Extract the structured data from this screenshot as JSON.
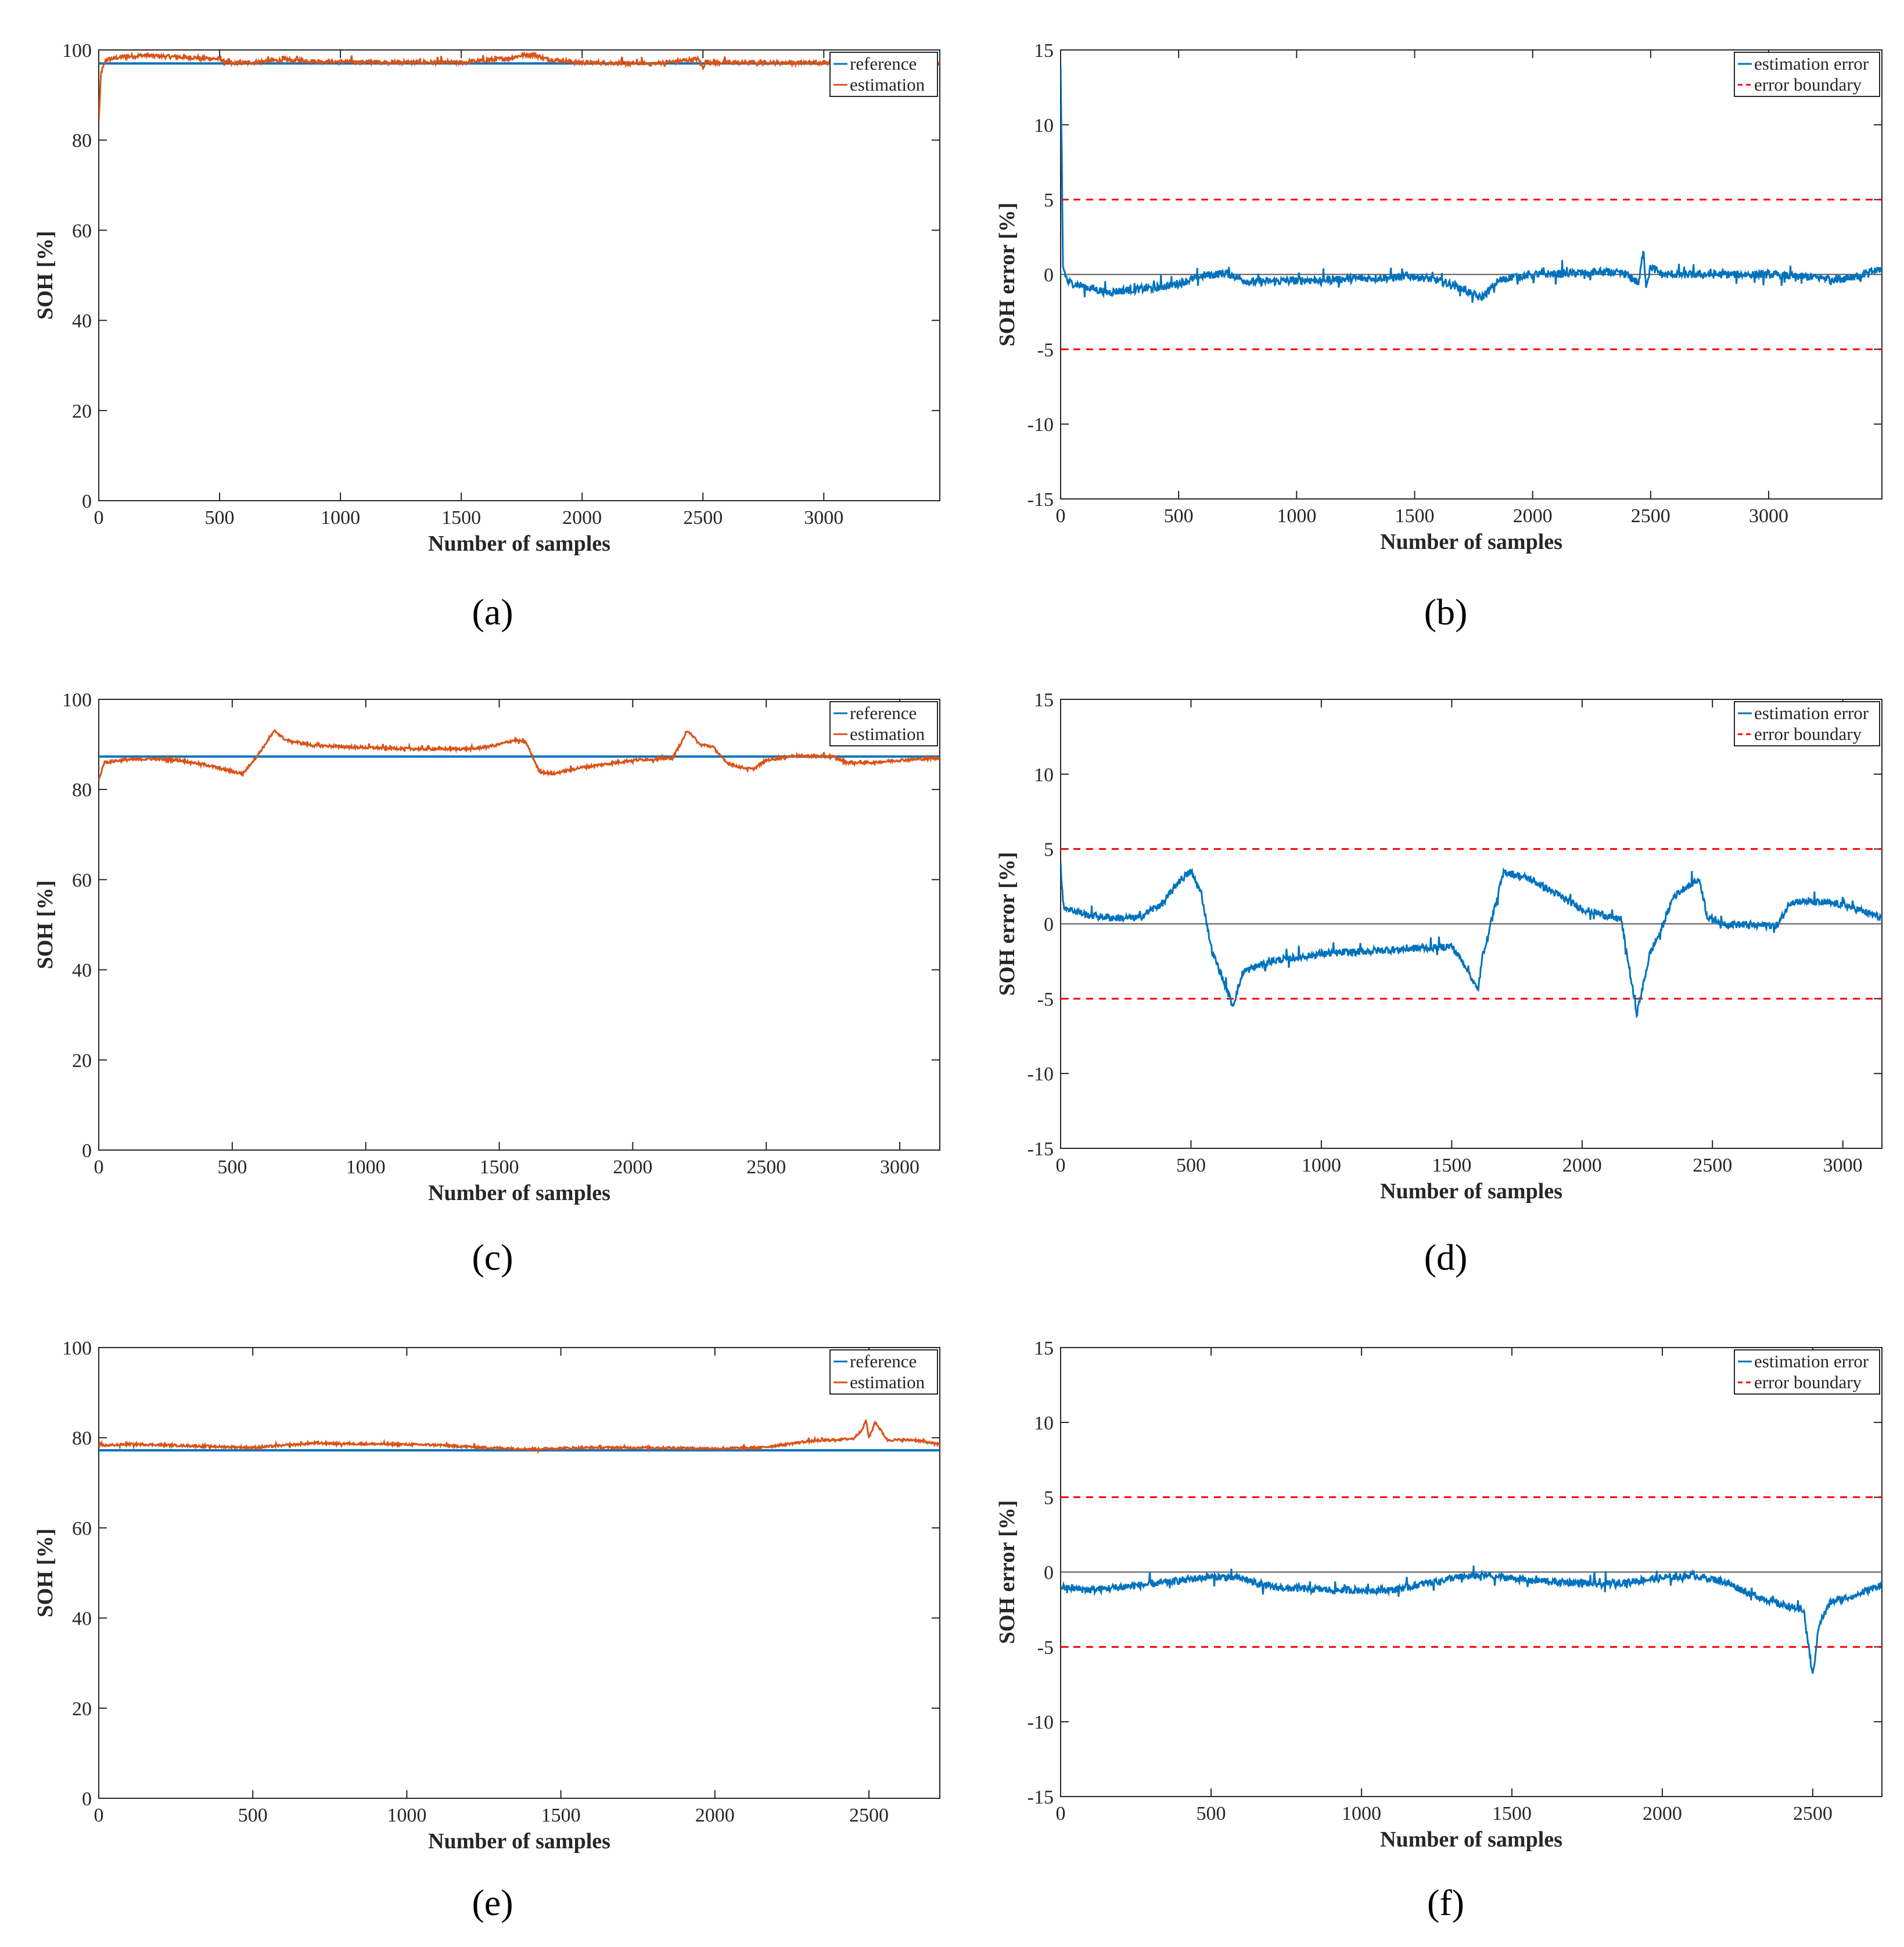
{
  "colors": {
    "reference": "#0072bd",
    "estimation": "#d95319",
    "error": "#0072bd",
    "boundary": "#ff0000",
    "zero_line": "#555555",
    "axes": "#262626"
  },
  "chart_data": [
    {
      "panel": "(a)",
      "type": "line",
      "xlabel": "Number of samples",
      "ylabel": "SOH [%]",
      "xlim": [
        0,
        3480
      ],
      "ylim": [
        0,
        100
      ],
      "xticks": [
        0,
        500,
        1000,
        1500,
        2000,
        2500,
        3000
      ],
      "yticks": [
        0,
        20,
        40,
        60,
        80,
        100
      ],
      "legend": [
        "reference",
        "estimation"
      ],
      "series": [
        {
          "name": "reference",
          "x": [
            0,
            3480
          ],
          "y": [
            97,
            97
          ]
        },
        {
          "name": "estimation",
          "noise": 0.9,
          "x": [
            0,
            10,
            30,
            100,
            200,
            300,
            400,
            500,
            550,
            650,
            700,
            800,
            900,
            1000,
            1200,
            1500,
            1700,
            1750,
            1800,
            1850,
            2000,
            2300,
            2450,
            2480,
            2500,
            2510,
            2550,
            3000,
            3200,
            3300,
            3480
          ],
          "y": [
            84,
            95,
            97.8,
            98.5,
            98.8,
            98.5,
            98.3,
            98,
            97,
            97.3,
            97.6,
            97.8,
            97.5,
            97.4,
            97.3,
            97.2,
            98.2,
            98.8,
            99,
            98,
            97.2,
            97,
            97.8,
            98,
            96,
            97.5,
            97.2,
            97.2,
            97.4,
            97.4,
            97
          ]
        }
      ]
    },
    {
      "panel": "(b)",
      "type": "line",
      "xlabel": "Number of samples",
      "ylabel": "SOH error [%]",
      "xlim": [
        0,
        3480
      ],
      "ylim": [
        -15,
        15
      ],
      "xticks": [
        0,
        500,
        1000,
        1500,
        2000,
        2500,
        3000
      ],
      "yticks": [
        -15,
        -10,
        -5,
        0,
        5,
        10,
        15
      ],
      "legend": [
        "estimation error",
        "error boundary"
      ],
      "boundary": [
        5,
        -5
      ],
      "series": [
        {
          "name": "estimation error",
          "noise": 0.55,
          "x": [
            0,
            5,
            10,
            30,
            100,
            200,
            300,
            400,
            500,
            600,
            650,
            700,
            800,
            1000,
            1200,
            1400,
            1500,
            1600,
            1700,
            1780,
            1800,
            1850,
            1900,
            2000,
            2200,
            2300,
            2400,
            2450,
            2470,
            2480,
            2500,
            2550,
            2600,
            3000,
            3200,
            3300,
            3400,
            3480
          ],
          "y": [
            13.3,
            8,
            0.5,
            -0.5,
            -0.8,
            -1.2,
            -1,
            -0.9,
            -0.6,
            -0.1,
            0,
            0.1,
            -0.5,
            -0.4,
            -0.3,
            -0.2,
            -0.1,
            -0.4,
            -0.9,
            -1.6,
            -1.3,
            -0.5,
            -0.2,
            0,
            0.1,
            0.2,
            0,
            -0.6,
            1.8,
            -0.8,
            0.5,
            0,
            0,
            0,
            -0.2,
            -0.3,
            0,
            0.4
          ]
        }
      ]
    },
    {
      "panel": "(c)",
      "type": "line",
      "xlabel": "Number of samples",
      "ylabel": "SOH [%]",
      "xlim": [
        0,
        3150
      ],
      "ylim": [
        0,
        100
      ],
      "xticks": [
        0,
        500,
        1000,
        1500,
        2000,
        2500,
        3000
      ],
      "yticks": [
        0,
        20,
        40,
        60,
        80,
        100
      ],
      "legend": [
        "reference",
        "estimation"
      ],
      "series": [
        {
          "name": "reference",
          "x": [
            0,
            3150
          ],
          "y": [
            87.3,
            87.3
          ]
        },
        {
          "name": "estimation",
          "noise": 0.6,
          "x": [
            0,
            20,
            100,
            200,
            300,
            400,
            500,
            540,
            600,
            640,
            660,
            700,
            800,
            1000,
            1200,
            1400,
            1500,
            1560,
            1600,
            1650,
            1700,
            1800,
            2000,
            2150,
            2200,
            2210,
            2250,
            2300,
            2350,
            2400,
            2450,
            2500,
            2600,
            2750,
            2800,
            2900,
            3000,
            3150
          ],
          "y": [
            82,
            86,
            86.6,
            86.8,
            86.5,
            85.5,
            84,
            83.5,
            88,
            91.5,
            93,
            91,
            89.8,
            89.3,
            89,
            89,
            90,
            91,
            90.5,
            84,
            83.5,
            84.8,
            86.5,
            87,
            92.5,
            93,
            90,
            89.5,
            86,
            85,
            84.5,
            86.5,
            87.5,
            87.3,
            86,
            86,
            86.5,
            87
          ]
        }
      ]
    },
    {
      "panel": "(d)",
      "type": "line",
      "xlabel": "Number of samples",
      "ylabel": "SOH error [%]",
      "xlim": [
        0,
        3150
      ],
      "ylim": [
        -15,
        15
      ],
      "xticks": [
        0,
        500,
        1000,
        1500,
        2000,
        2500,
        3000
      ],
      "yticks": [
        -15,
        -10,
        -5,
        0,
        5,
        10,
        15
      ],
      "legend": [
        "estimation error",
        "error boundary"
      ],
      "boundary": [
        5,
        -5
      ],
      "series": [
        {
          "name": "estimation error",
          "noise": 0.5,
          "x": [
            0,
            10,
            30,
            100,
            200,
            300,
            400,
            450,
            500,
            540,
            580,
            640,
            660,
            700,
            800,
            1000,
            1200,
            1400,
            1500,
            1560,
            1600,
            1620,
            1700,
            1800,
            2000,
            2150,
            2200,
            2210,
            2260,
            2300,
            2350,
            2400,
            2450,
            2480,
            2550,
            2650,
            2750,
            2800,
            2850,
            3000,
            3150
          ],
          "y": [
            4,
            1.2,
            1,
            0.6,
            0.4,
            0.4,
            1.5,
            2.8,
            3.5,
            2,
            -1.8,
            -4.5,
            -5.5,
            -3.2,
            -2.5,
            -2,
            -1.8,
            -1.6,
            -1.5,
            -3,
            -4.5,
            -2,
            3.5,
            3,
            1,
            0.3,
            -5,
            -6,
            -2,
            -0.5,
            1.8,
            2.5,
            3,
            0.5,
            0,
            -0.1,
            -0.1,
            1.5,
            1.5,
            1.3,
            0.4
          ]
        }
      ]
    },
    {
      "panel": "(e)",
      "type": "line",
      "xlabel": "Number of samples",
      "ylabel": "SOH [%]",
      "xlim": [
        0,
        2730
      ],
      "ylim": [
        0,
        100
      ],
      "xticks": [
        0,
        500,
        1000,
        1500,
        2000,
        2500
      ],
      "yticks": [
        0,
        20,
        40,
        60,
        80,
        100
      ],
      "legend": [
        "reference",
        "estimation"
      ],
      "series": [
        {
          "name": "reference",
          "x": [
            0,
            2730
          ],
          "y": [
            77.2,
            77.2
          ]
        },
        {
          "name": "estimation",
          "noise": 0.5,
          "x": [
            0,
            100,
            300,
            500,
            700,
            900,
            1100,
            1250,
            1400,
            1600,
            1800,
            2000,
            2150,
            2300,
            2450,
            2480,
            2490,
            2500,
            2520,
            2560,
            2650,
            2730
          ],
          "y": [
            78.2,
            78.6,
            78.2,
            77.8,
            78.8,
            78.6,
            78.4,
            77.8,
            77.5,
            77.8,
            77.8,
            77.6,
            77.8,
            79.2,
            79.8,
            82,
            84,
            80,
            83.5,
            79.5,
            79.5,
            78.5
          ]
        }
      ]
    },
    {
      "panel": "(f)",
      "type": "line",
      "xlabel": "Number of samples",
      "ylabel": "SOH error [%]",
      "xlim": [
        0,
        2730
      ],
      "ylim": [
        -15,
        15
      ],
      "xticks": [
        0,
        500,
        1000,
        1500,
        2000,
        2500
      ],
      "yticks": [
        -15,
        -10,
        -5,
        0,
        5,
        10,
        15
      ],
      "legend": [
        "estimation error",
        "error boundary"
      ],
      "boundary": [
        5,
        -5
      ],
      "series": [
        {
          "name": "estimation error",
          "noise": 0.5,
          "x": [
            0,
            100,
            300,
            500,
            600,
            700,
            900,
            1100,
            1200,
            1300,
            1400,
            1600,
            1800,
            2000,
            2100,
            2200,
            2300,
            2400,
            2470,
            2490,
            2500,
            2520,
            2560,
            2650,
            2730
          ],
          "y": [
            -1,
            -1.2,
            -0.8,
            -0.3,
            -0.4,
            -1,
            -1.2,
            -1.2,
            -0.8,
            -0.4,
            -0.2,
            -0.6,
            -0.8,
            -0.4,
            -0.2,
            -0.6,
            -1.5,
            -2.2,
            -2.5,
            -5.5,
            -7,
            -3.5,
            -2,
            -1.5,
            -0.8
          ]
        }
      ]
    }
  ]
}
